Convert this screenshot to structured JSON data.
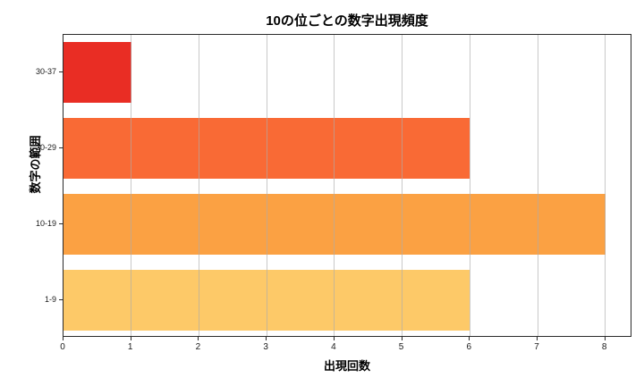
{
  "chart_data": {
    "type": "bar",
    "orientation": "horizontal",
    "title": "10の位ごとの数字出現頻度",
    "xlabel": "出現回数",
    "ylabel": "数字の範囲",
    "categories": [
      "1-9",
      "10-19",
      "20-29",
      "30-37"
    ],
    "values": [
      6,
      8,
      6,
      1
    ],
    "bar_colors": [
      "#fdc968",
      "#fba143",
      "#f96a35",
      "#e92d24"
    ],
    "xlim": [
      0,
      8.4
    ],
    "xticks": [
      0,
      1,
      2,
      3,
      4,
      5,
      6,
      7,
      8
    ],
    "grid": "x",
    "grid_color": "rgba(172,172,172,0.65)",
    "bar_height_fraction": 0.8,
    "legend": "none",
    "background_color": "#ffffff"
  }
}
